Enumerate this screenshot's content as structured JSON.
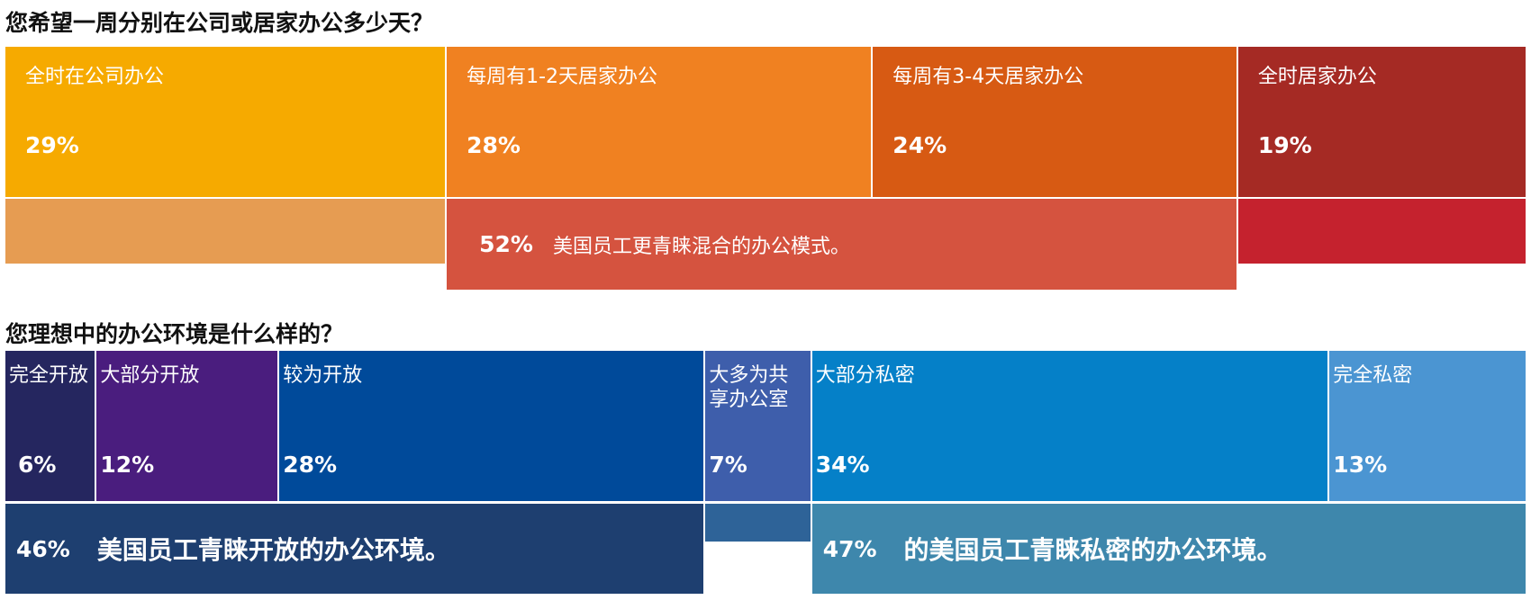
{
  "chart_data": [
    {
      "type": "proportion-bar",
      "title": "您希望一周分别在公司或居家办公多少天？",
      "categories": [
        "全时在公司办公",
        "每周有1-2天居家办公",
        "每周有3-4天居家办公",
        "全时居家办公"
      ],
      "values": [
        29,
        28,
        24,
        19
      ],
      "value_labels": [
        "29%",
        "28%",
        "24%",
        "19%"
      ],
      "colors": [
        "#f6aa00",
        "#f08121",
        "#d75a13",
        "#a52a24"
      ],
      "summaries": [
        {
          "value": 52,
          "value_label": "52%",
          "text": "美国员工更青睐混合的办公模式。",
          "color": "#d5533f"
        }
      ]
    },
    {
      "type": "proportion-bar",
      "title": "您理想中的办公环境是什么样的？",
      "categories": [
        "完全开放",
        "大部分开放",
        "较为开放",
        "大多为共享办公室",
        "大部分私密",
        "完全私密"
      ],
      "values": [
        6,
        12,
        28,
        7,
        34,
        13
      ],
      "value_labels": [
        "6%",
        "12%",
        "28%",
        "7%",
        "34%",
        "13%"
      ],
      "colors": [
        "#25265f",
        "#4a1d7e",
        "#004a9a",
        "#3e5eab",
        "#0580c8",
        "#4b95d2"
      ],
      "summaries": [
        {
          "value": 46,
          "value_label": "46%",
          "text": "美国员工青睐开放的办公环境。",
          "color": "#1e3f70"
        },
        {
          "value": 47,
          "value_label": "47%",
          "text": "的美国员工青睐私密的办公环境。",
          "color": "#3e87ac"
        }
      ]
    }
  ]
}
